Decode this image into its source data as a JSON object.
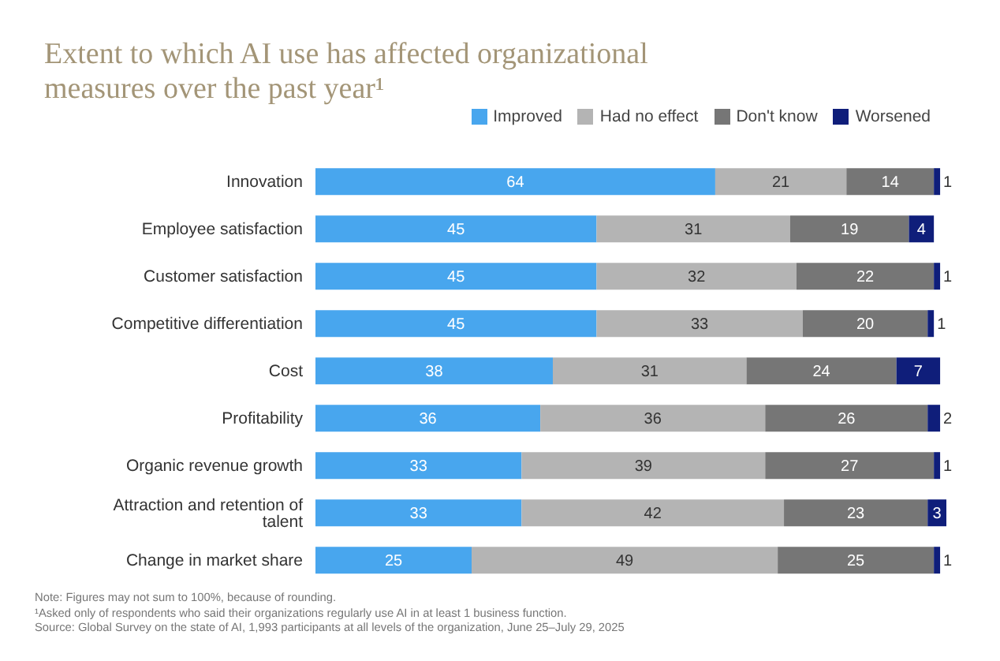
{
  "chart_data": {
    "type": "bar",
    "orientation": "horizontal",
    "stacked": true,
    "title": "Extent to which AI use has affected organizational measures over the past year¹",
    "categories": [
      "Innovation",
      "Employee satisfaction",
      "Customer satisfaction",
      "Competitive differentiation",
      "Cost",
      "Profitability",
      "Organic revenue growth",
      "Attraction and retention of talent",
      "Change in market share"
    ],
    "series": [
      {
        "name": "Improved",
        "color": "#48a6ee",
        "values": [
          64,
          45,
          45,
          45,
          38,
          36,
          33,
          33,
          25
        ]
      },
      {
        "name": "Had no effect",
        "color": "#b4b4b4",
        "values": [
          21,
          31,
          32,
          33,
          31,
          36,
          39,
          42,
          49
        ]
      },
      {
        "name": "Don't know",
        "color": "#767676",
        "values": [
          14,
          19,
          22,
          20,
          24,
          26,
          27,
          23,
          25
        ]
      },
      {
        "name": "Worsened",
        "color": "#0f1e7a",
        "values": [
          1,
          4,
          1,
          1,
          7,
          2,
          1,
          3,
          1
        ]
      }
    ],
    "data_labels": true,
    "legend": "top right",
    "grid": false,
    "annotations": [
      "Note: Figures may not sum to 100%, because of rounding.",
      "¹Asked only of respondents who said their organizations regularly use AI in at least 1 business function.",
      "Source: Global Survey on the state of AI, 1,993 participants at all levels of the organization, June 25–July 29, 2025"
    ]
  }
}
